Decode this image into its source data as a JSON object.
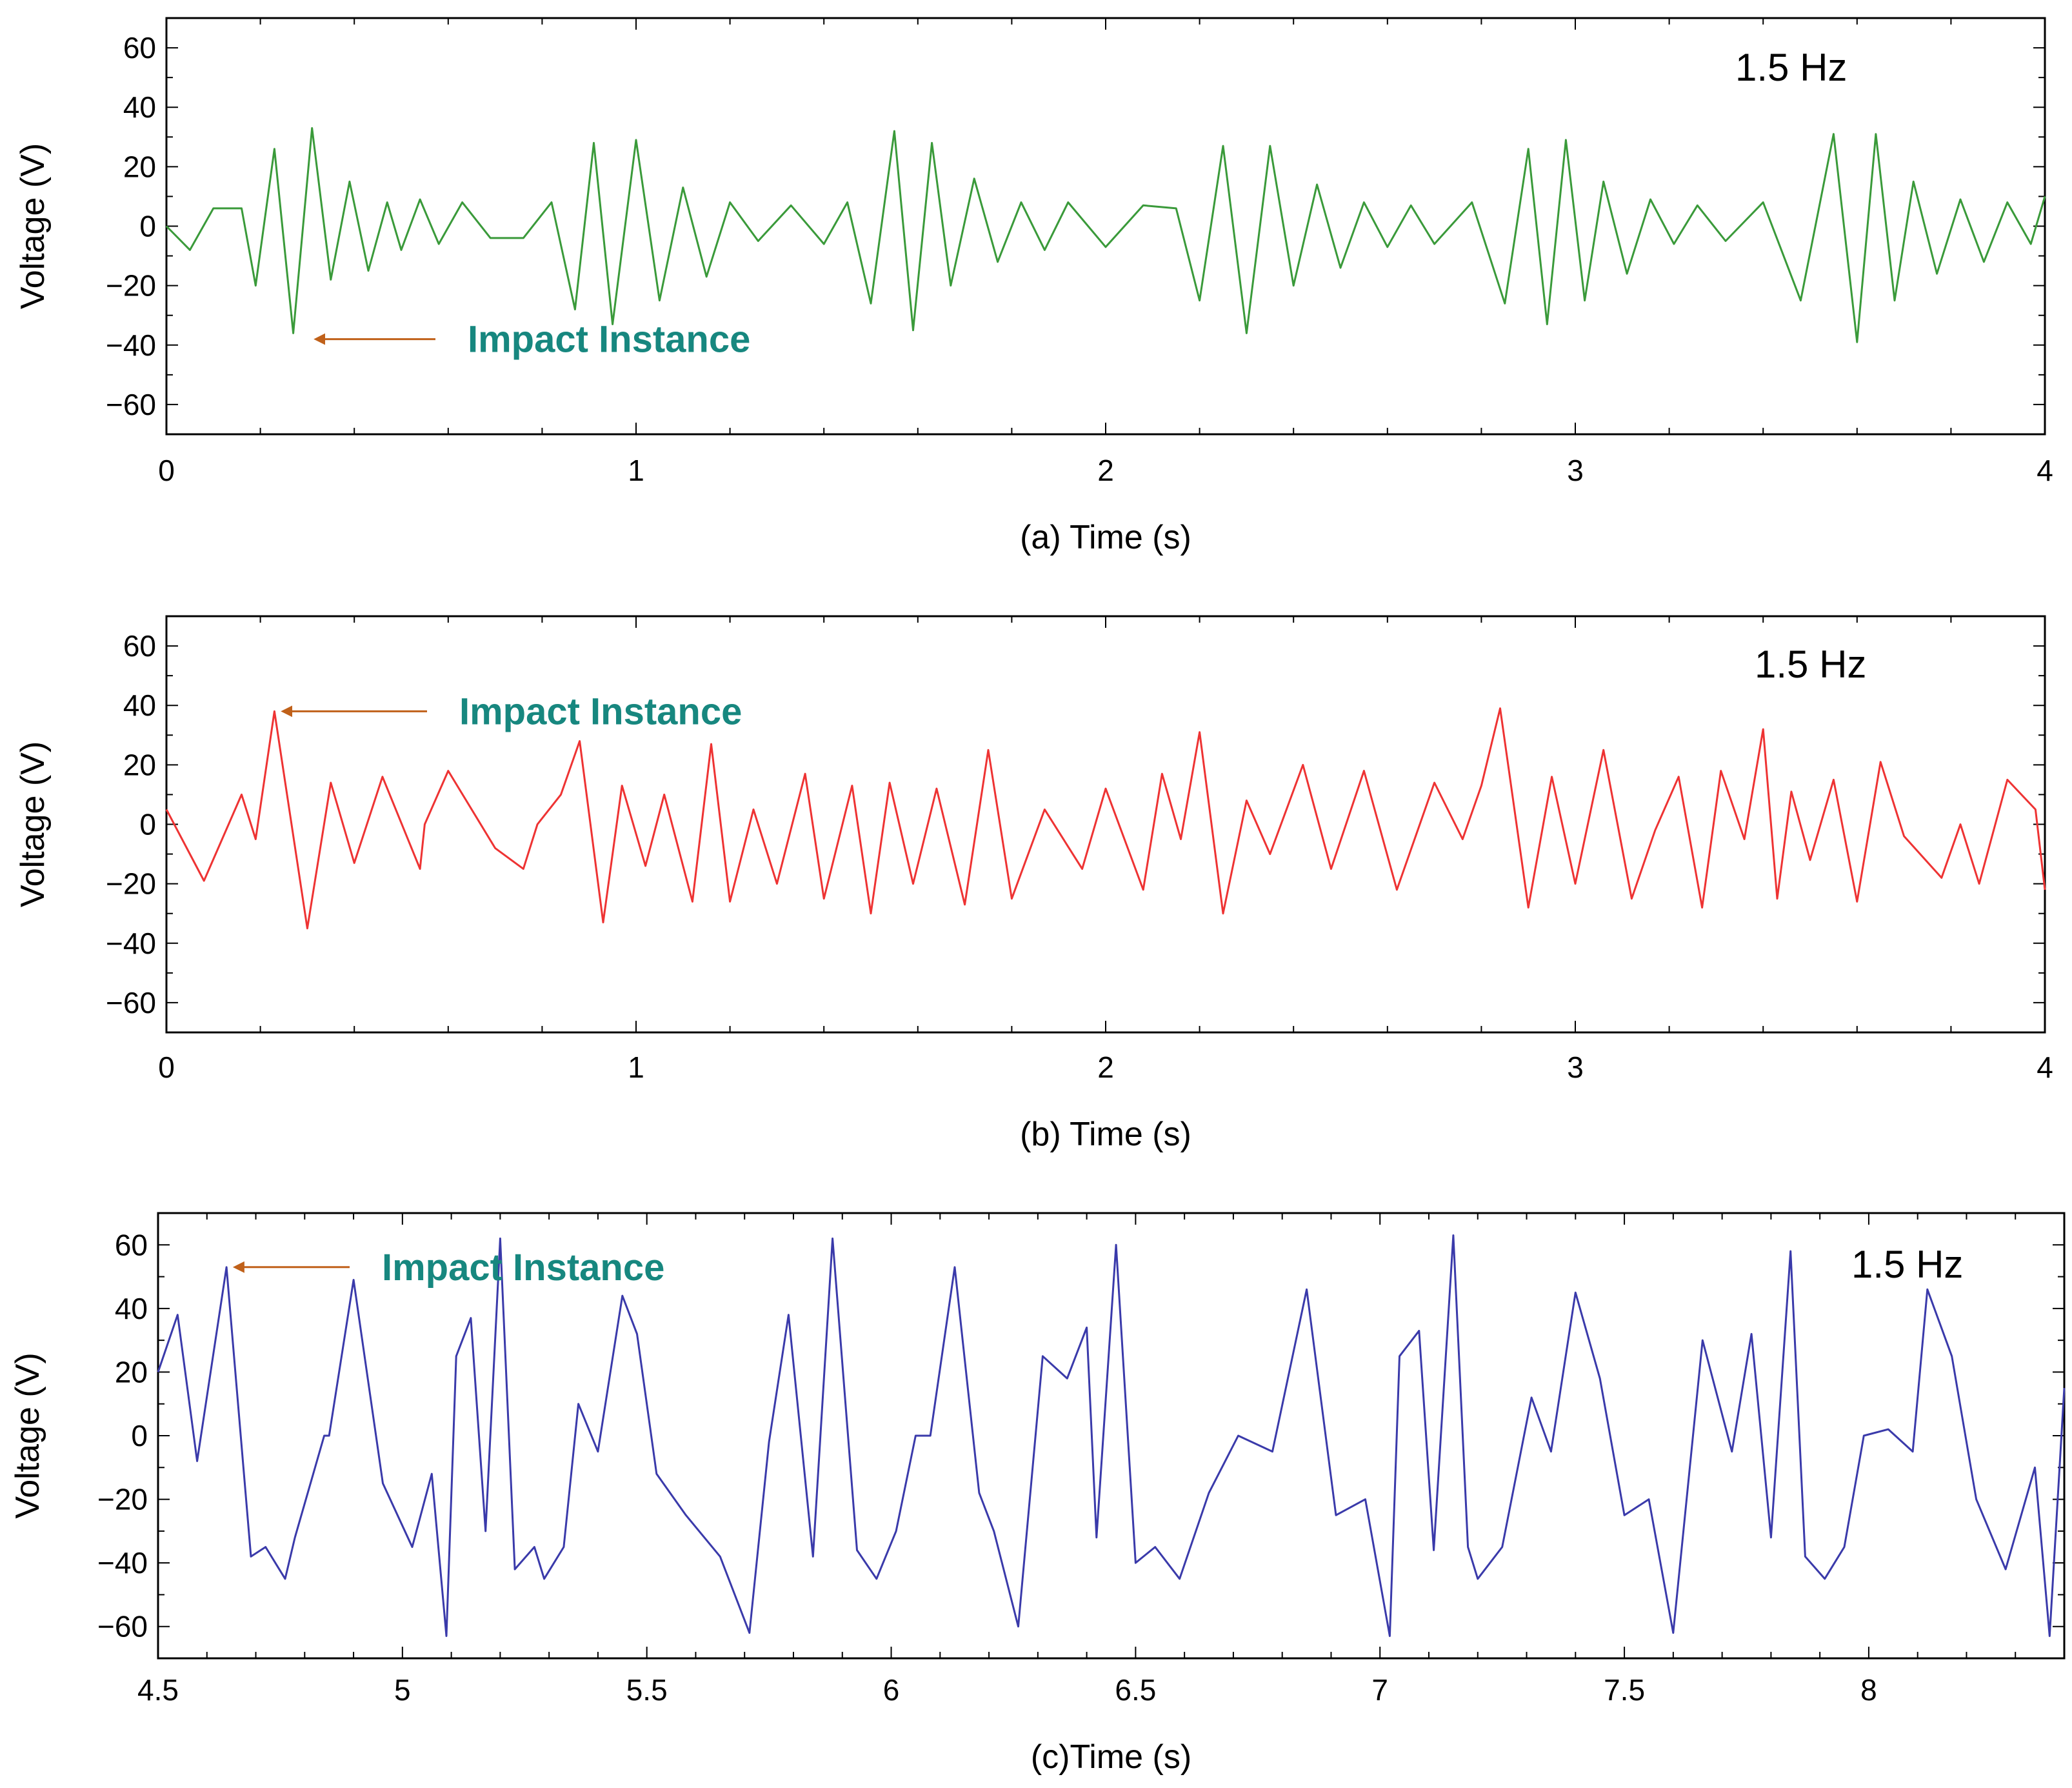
{
  "chart_data": [
    {
      "type": "line",
      "panel": "a",
      "caption": "(a) Time (s)",
      "xlabel": "Time (s)",
      "ylabel": "Voltage (V)",
      "frequency_label": "1.5 Hz",
      "annotation": {
        "text": "Impact Instance",
        "x": 0.3,
        "y": -38
      },
      "xlim": [
        0,
        4
      ],
      "ylim": [
        -70,
        70
      ],
      "xticks": [
        0,
        1,
        2,
        3,
        4
      ],
      "xtick_labels": [
        "0",
        "1",
        "2",
        "3",
        "4"
      ],
      "yticks": [
        60,
        40,
        20,
        0,
        -20,
        -40,
        -60
      ],
      "ytick_labels": [
        "60",
        "40",
        "20",
        "0",
        "−20",
        "−40",
        "−60"
      ],
      "series": [
        {
          "name": "Voltage",
          "color": "#3a9a3a",
          "x": [
            0,
            0.05,
            0.1,
            0.16,
            0.19,
            0.23,
            0.27,
            0.31,
            0.35,
            0.39,
            0.43,
            0.47,
            0.5,
            0.54,
            0.58,
            0.63,
            0.69,
            0.76,
            0.82,
            0.87,
            0.91,
            0.95,
            1.0,
            1.05,
            1.1,
            1.15,
            1.2,
            1.26,
            1.33,
            1.4,
            1.45,
            1.5,
            1.55,
            1.59,
            1.63,
            1.67,
            1.72,
            1.77,
            1.82,
            1.87,
            1.92,
            2.0,
            2.08,
            2.15,
            2.2,
            2.25,
            2.3,
            2.35,
            2.4,
            2.45,
            2.5,
            2.55,
            2.6,
            2.65,
            2.7,
            2.78,
            2.85,
            2.9,
            2.94,
            2.98,
            3.02,
            3.06,
            3.11,
            3.16,
            3.21,
            3.26,
            3.32,
            3.4,
            3.48,
            3.55,
            3.6,
            3.64,
            3.68,
            3.72,
            3.77,
            3.82,
            3.87,
            3.92,
            3.97,
            4.0
          ],
          "y": [
            0,
            -8,
            6,
            6,
            -20,
            26,
            -36,
            33,
            -18,
            15,
            -15,
            8,
            -8,
            9,
            -6,
            8,
            -4,
            -4,
            8,
            -28,
            28,
            -33,
            29,
            -25,
            13,
            -17,
            8,
            -5,
            7,
            -6,
            8,
            -26,
            32,
            -35,
            28,
            -20,
            16,
            -12,
            8,
            -8,
            8,
            -7,
            7,
            6,
            -25,
            27,
            -36,
            27,
            -20,
            14,
            -14,
            8,
            -7,
            7,
            -6,
            8,
            -26,
            26,
            -33,
            29,
            -25,
            15,
            -16,
            9,
            -6,
            7,
            -5,
            8,
            -25,
            31,
            -39,
            31,
            -25,
            15,
            -16,
            9,
            -12,
            8,
            -6,
            10
          ]
        }
      ]
    },
    {
      "type": "line",
      "panel": "b",
      "caption": "(b) Time (s)",
      "xlabel": "Time (s)",
      "ylabel": "Voltage (V)",
      "frequency_label": "1.5 Hz",
      "annotation": {
        "text": "Impact Instance",
        "x": 0.23,
        "y": 38
      },
      "xlim": [
        0,
        4
      ],
      "ylim": [
        -70,
        70
      ],
      "xticks": [
        0,
        1,
        2,
        3,
        4
      ],
      "xtick_labels": [
        "0",
        "1",
        "2",
        "3",
        "4"
      ],
      "yticks": [
        60,
        40,
        20,
        0,
        -20,
        -40,
        -60
      ],
      "ytick_labels": [
        "60",
        "40",
        "20",
        "0",
        "−20",
        "−40",
        "−60"
      ],
      "series": [
        {
          "name": "Voltage",
          "color": "#ee3333",
          "x": [
            0,
            0.08,
            0.16,
            0.19,
            0.23,
            0.3,
            0.35,
            0.4,
            0.46,
            0.54,
            0.55,
            0.6,
            0.7,
            0.76,
            0.79,
            0.84,
            0.88,
            0.93,
            0.97,
            1.02,
            1.06,
            1.12,
            1.16,
            1.2,
            1.25,
            1.3,
            1.36,
            1.4,
            1.46,
            1.5,
            1.54,
            1.59,
            1.64,
            1.7,
            1.75,
            1.8,
            1.87,
            1.95,
            2.0,
            2.08,
            2.12,
            2.16,
            2.2,
            2.25,
            2.3,
            2.35,
            2.42,
            2.48,
            2.55,
            2.62,
            2.7,
            2.76,
            2.8,
            2.84,
            2.9,
            2.95,
            3.0,
            3.06,
            3.12,
            3.17,
            3.22,
            3.27,
            3.31,
            3.36,
            3.4,
            3.43,
            3.46,
            3.5,
            3.55,
            3.6,
            3.65,
            3.7,
            3.78,
            3.82,
            3.86,
            3.92,
            3.98,
            4.0
          ],
          "y": [
            5,
            -19,
            10,
            -5,
            38,
            -35,
            14,
            -13,
            16,
            -15,
            0,
            18,
            -8,
            -15,
            0,
            10,
            28,
            -33,
            13,
            -14,
            10,
            -26,
            27,
            -26,
            5,
            -20,
            17,
            -25,
            13,
            -30,
            14,
            -20,
            12,
            -27,
            25,
            -25,
            5,
            -15,
            12,
            -22,
            17,
            -5,
            31,
            -30,
            8,
            -10,
            20,
            -15,
            18,
            -22,
            14,
            -5,
            13,
            39,
            -28,
            16,
            -20,
            25,
            -25,
            -2,
            16,
            -28,
            18,
            -5,
            32,
            -25,
            11,
            -12,
            15,
            -26,
            21,
            -4,
            -18,
            0,
            -20,
            15,
            5,
            -22
          ]
        }
      ]
    },
    {
      "type": "line",
      "panel": "c",
      "caption": "(c)Time (s)",
      "xlabel": "Time (s)",
      "ylabel": "Voltage (V)",
      "frequency_label": "1.5 Hz",
      "annotation": {
        "text": "Impact Instance",
        "x": 4.64,
        "y": 53
      },
      "xlim": [
        4.5,
        8.4
      ],
      "ylim": [
        -70,
        70
      ],
      "xticks": [
        4.5,
        5,
        5.5,
        6,
        6.5,
        7,
        7.5,
        8
      ],
      "xtick_labels": [
        "4.5",
        "5",
        "5.5",
        "6",
        "6.5",
        "7",
        "7.5",
        "8"
      ],
      "yticks": [
        60,
        40,
        20,
        0,
        -20,
        -40,
        -60
      ],
      "ytick_labels": [
        "60",
        "40",
        "20",
        "0",
        "−20",
        "−40",
        "−60"
      ],
      "series": [
        {
          "name": "Voltage",
          "color": "#3a3aaa",
          "x": [
            4.5,
            4.54,
            4.58,
            4.64,
            4.69,
            4.72,
            4.76,
            4.78,
            4.84,
            4.85,
            4.9,
            4.96,
            5.02,
            5.06,
            5.09,
            5.11,
            5.14,
            5.17,
            5.2,
            5.23,
            5.27,
            5.29,
            5.33,
            5.36,
            5.4,
            5.45,
            5.48,
            5.52,
            5.58,
            5.65,
            5.71,
            5.75,
            5.79,
            5.84,
            5.88,
            5.93,
            5.97,
            6.01,
            6.05,
            6.08,
            6.13,
            6.18,
            6.21,
            6.26,
            6.31,
            6.36,
            6.4,
            6.42,
            6.46,
            6.5,
            6.54,
            6.59,
            6.65,
            6.71,
            6.78,
            6.85,
            6.91,
            6.97,
            7.02,
            7.04,
            7.08,
            7.11,
            7.15,
            7.18,
            7.2,
            7.25,
            7.31,
            7.35,
            7.4,
            7.45,
            7.5,
            7.55,
            7.6,
            7.66,
            7.72,
            7.76,
            7.8,
            7.84,
            7.87,
            7.91,
            7.95,
            7.99,
            8.04,
            8.09,
            8.12,
            8.17,
            8.22,
            8.28,
            8.34,
            8.37,
            8.4
          ],
          "y": [
            20,
            38,
            -8,
            53,
            -38,
            -35,
            -45,
            -32,
            0,
            0,
            49,
            -15,
            -35,
            -12,
            -63,
            25,
            37,
            -30,
            62,
            -42,
            -35,
            -45,
            -35,
            10,
            -5,
            44,
            32,
            -12,
            -25,
            -38,
            -62,
            -2,
            38,
            -38,
            62,
            -36,
            -45,
            -30,
            0,
            0,
            53,
            -18,
            -30,
            -60,
            25,
            18,
            34,
            -32,
            60,
            -40,
            -35,
            -45,
            -18,
            0,
            -5,
            46,
            -25,
            -20,
            -63,
            25,
            33,
            -36,
            63,
            -35,
            -45,
            -35,
            12,
            -5,
            45,
            18,
            -25,
            -20,
            -62,
            30,
            -5,
            32,
            -32,
            58,
            -38,
            -45,
            -35,
            0,
            2,
            -5,
            46,
            25,
            -20,
            -42,
            -10,
            -63,
            15
          ]
        }
      ]
    }
  ]
}
